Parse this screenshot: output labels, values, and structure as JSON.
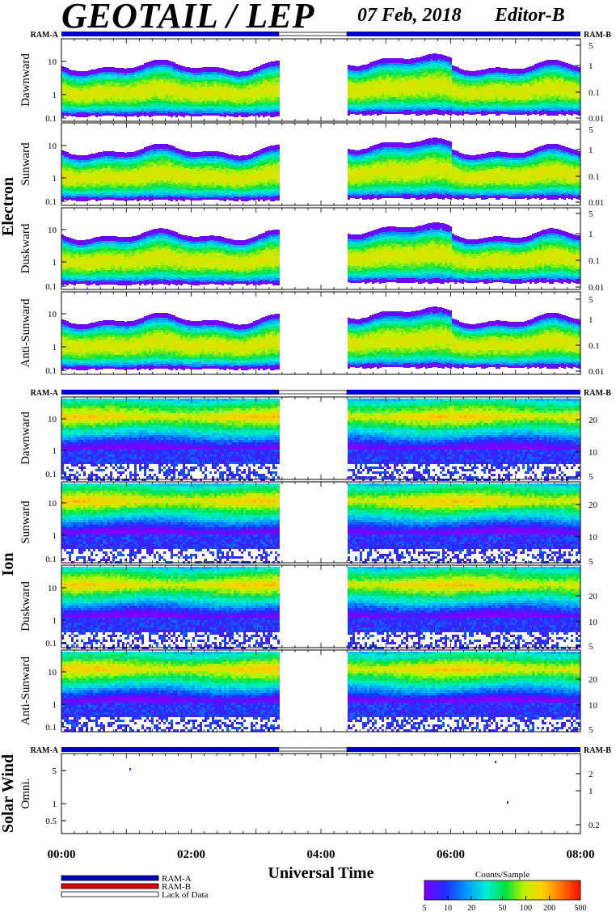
{
  "header": {
    "title": "GEOTAIL / LEP",
    "date": "07 Feb, 2018",
    "editor": "Editor-B"
  },
  "colors": {
    "ram_a": "#0000c8",
    "ram_b": "#e00000",
    "lack_of_data": "#ffffff",
    "colorbar": [
      "#7a00ff",
      "#2030ff",
      "#00a0ff",
      "#00f0d0",
      "#00e040",
      "#c0f000",
      "#ffd000",
      "#ff7000",
      "#ff1000"
    ]
  },
  "chart_data": {
    "type": "heatmap",
    "title": "GEOTAIL / LEP",
    "xlabel": "Universal Time",
    "x_ticks": [
      "00:00",
      "02:00",
      "04:00",
      "06:00",
      "08:00"
    ],
    "x_range_hours": [
      0,
      8
    ],
    "data_gap_hours": [
      3.35,
      4.4
    ],
    "mode_bar": {
      "left_label": "RAM-A",
      "right_label": "RAM-B"
    },
    "groups": [
      {
        "name": "Electron",
        "left_ticks": [
          "10",
          "1",
          "0.1"
        ],
        "right_ticks": [
          "5",
          "1",
          "0.1",
          "0.01"
        ],
        "panels": [
          "Dawnward",
          "Sunward",
          "Duskward",
          "Anti-Sunward"
        ]
      },
      {
        "name": "Ion",
        "left_ticks": [
          "10",
          "1",
          "0.1"
        ],
        "right_ticks": [
          "20",
          "10",
          "5"
        ],
        "panels": [
          "Dawnward",
          "Sunward",
          "Duskward",
          "Anti-Sunward"
        ]
      },
      {
        "name": "Solar Wind",
        "left_ticks": [
          "5",
          "1",
          "0.5"
        ],
        "right_ticks": [
          "2",
          "1",
          "0.2"
        ],
        "panels": [
          "Omni."
        ]
      }
    ],
    "legend": {
      "items": [
        "RAM-A",
        "RAM-B",
        "Lack of Data"
      ]
    },
    "colorbar": {
      "title": "Counts/Sample",
      "ticks": [
        "5",
        "10",
        "20",
        "50",
        "100",
        "200",
        "500"
      ]
    }
  }
}
